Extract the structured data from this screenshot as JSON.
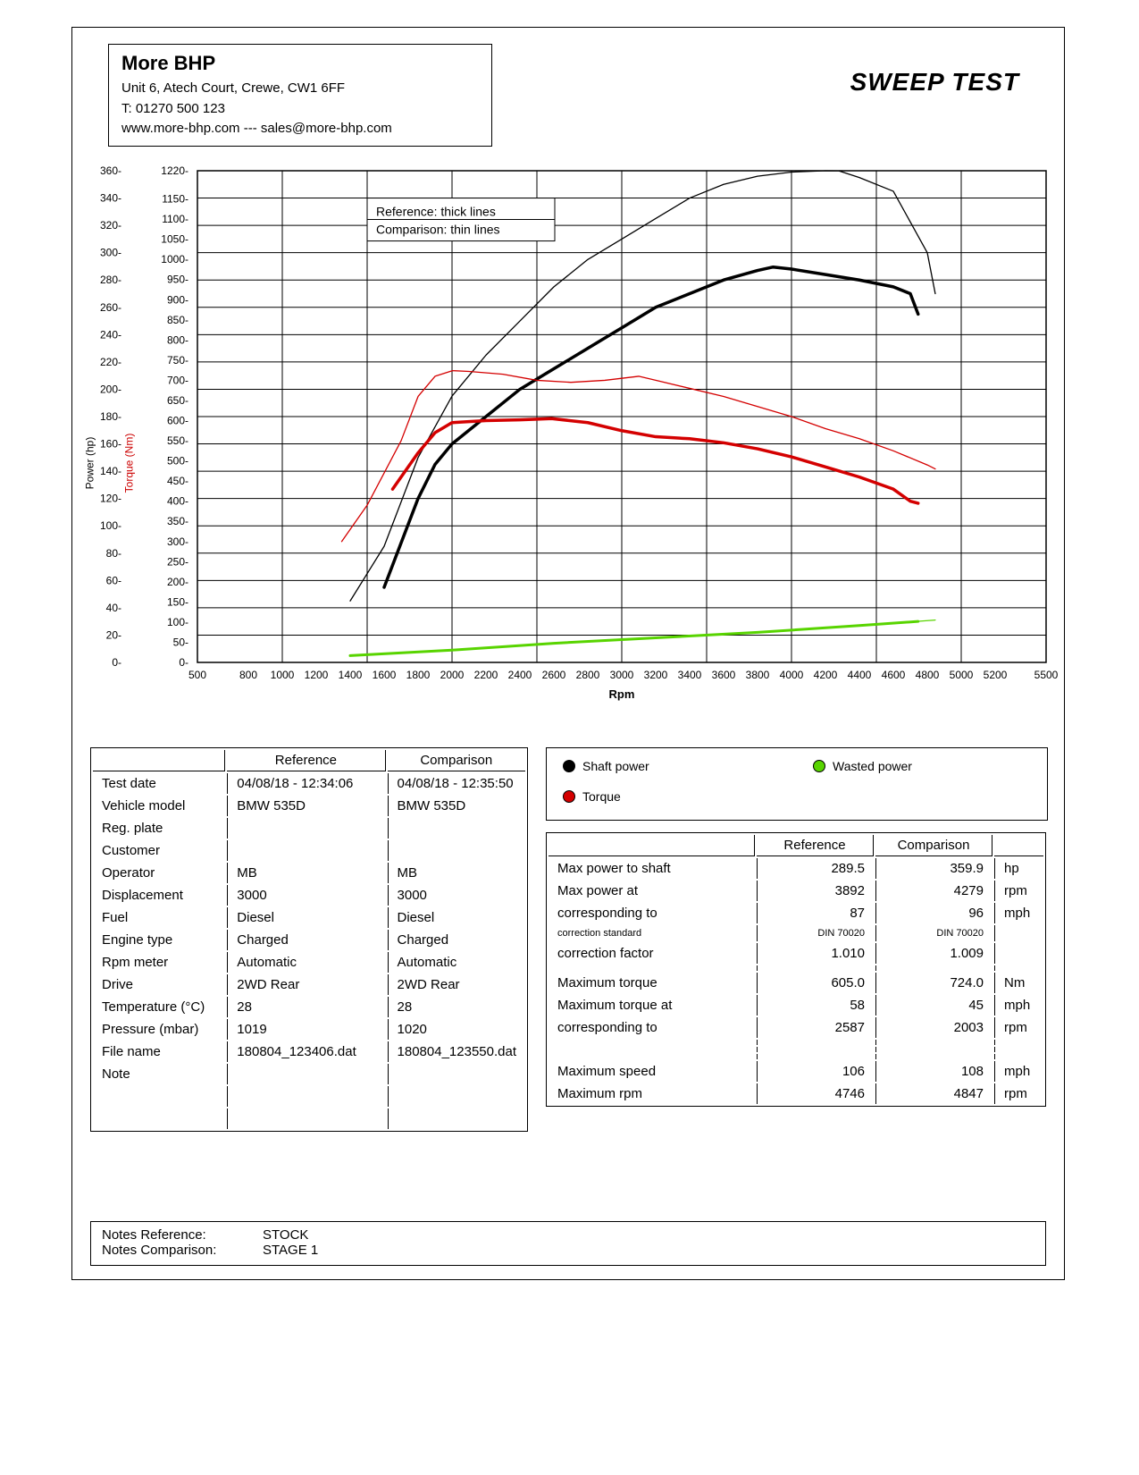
{
  "header": {
    "company": "More BHP",
    "address": "Unit 6, Atech Court, Crewe, CW1 6FF",
    "phone": "T: 01270 500 123",
    "web": "www.more-bhp.com --- sales@more-bhp.com"
  },
  "page_title": "SWEEP TEST",
  "chart": {
    "x_label": "Rpm",
    "y1_label": "Power (hp)",
    "y2_label": "Torque (Nm)",
    "xlim": [
      500,
      5500
    ],
    "xticks": [
      500,
      800,
      1000,
      1200,
      1400,
      1600,
      1800,
      2000,
      2200,
      2400,
      2600,
      2800,
      3000,
      3200,
      3400,
      3600,
      3800,
      4000,
      4200,
      4400,
      4600,
      4800,
      5000,
      5200,
      5500
    ],
    "y1_lim": [
      0,
      360
    ],
    "y1_ticks": [
      0,
      20,
      40,
      60,
      80,
      100,
      120,
      140,
      160,
      180,
      200,
      220,
      240,
      260,
      280,
      300,
      320,
      340,
      360
    ],
    "y2_lim": [
      0,
      1220
    ],
    "y2_ticks": [
      0,
      50,
      100,
      150,
      200,
      250,
      300,
      350,
      400,
      450,
      500,
      550,
      600,
      650,
      700,
      750,
      800,
      850,
      900,
      950,
      1000,
      1050,
      1100,
      1150,
      1220
    ],
    "grid_color": "#000000",
    "background_color": "#ffffff",
    "legend_box": {
      "line1": "Reference: thick lines",
      "line2": "Comparison: thin lines"
    },
    "series": {
      "power_ref": {
        "color": "#000000",
        "width": 3.5,
        "axis": "y1",
        "data": [
          [
            1600,
            55
          ],
          [
            1800,
            120
          ],
          [
            1900,
            145
          ],
          [
            2000,
            160
          ],
          [
            2200,
            180
          ],
          [
            2400,
            200
          ],
          [
            2600,
            215
          ],
          [
            2800,
            230
          ],
          [
            3000,
            245
          ],
          [
            3200,
            260
          ],
          [
            3400,
            270
          ],
          [
            3600,
            280
          ],
          [
            3800,
            287
          ],
          [
            3892,
            289.5
          ],
          [
            4000,
            288
          ],
          [
            4200,
            284
          ],
          [
            4400,
            280
          ],
          [
            4600,
            275
          ],
          [
            4700,
            270
          ],
          [
            4746,
            255
          ]
        ]
      },
      "power_comp": {
        "color": "#000000",
        "width": 1.3,
        "axis": "y1",
        "data": [
          [
            1400,
            45
          ],
          [
            1600,
            85
          ],
          [
            1800,
            150
          ],
          [
            2000,
            195
          ],
          [
            2200,
            225
          ],
          [
            2400,
            250
          ],
          [
            2600,
            275
          ],
          [
            2800,
            295
          ],
          [
            3000,
            310
          ],
          [
            3200,
            325
          ],
          [
            3400,
            340
          ],
          [
            3600,
            350
          ],
          [
            3800,
            356
          ],
          [
            4000,
            359
          ],
          [
            4200,
            360
          ],
          [
            4279,
            359.9
          ],
          [
            4400,
            355
          ],
          [
            4600,
            345
          ],
          [
            4800,
            300
          ],
          [
            4847,
            270
          ]
        ]
      },
      "torque_ref": {
        "color": "#d40000",
        "width": 3.5,
        "axis": "y2",
        "data": [
          [
            1650,
            430
          ],
          [
            1800,
            520
          ],
          [
            1900,
            570
          ],
          [
            2000,
            595
          ],
          [
            2200,
            600
          ],
          [
            2400,
            602
          ],
          [
            2587,
            605
          ],
          [
            2800,
            595
          ],
          [
            3000,
            575
          ],
          [
            3200,
            560
          ],
          [
            3400,
            555
          ],
          [
            3600,
            545
          ],
          [
            3800,
            530
          ],
          [
            4000,
            510
          ],
          [
            4200,
            485
          ],
          [
            4400,
            460
          ],
          [
            4600,
            430
          ],
          [
            4700,
            400
          ],
          [
            4746,
            395
          ]
        ]
      },
      "torque_comp": {
        "color": "#d40000",
        "width": 1.3,
        "axis": "y2",
        "data": [
          [
            1350,
            300
          ],
          [
            1500,
            390
          ],
          [
            1700,
            550
          ],
          [
            1800,
            660
          ],
          [
            1900,
            710
          ],
          [
            2003,
            724
          ],
          [
            2100,
            722
          ],
          [
            2300,
            715
          ],
          [
            2500,
            700
          ],
          [
            2700,
            695
          ],
          [
            2900,
            700
          ],
          [
            3100,
            710
          ],
          [
            3200,
            700
          ],
          [
            3400,
            680
          ],
          [
            3600,
            660
          ],
          [
            3800,
            635
          ],
          [
            4000,
            610
          ],
          [
            4200,
            580
          ],
          [
            4400,
            555
          ],
          [
            4600,
            525
          ],
          [
            4800,
            490
          ],
          [
            4847,
            480
          ]
        ]
      },
      "wasted_ref": {
        "color": "#58d400",
        "width": 3,
        "axis": "y1",
        "data": [
          [
            1400,
            5
          ],
          [
            2000,
            9
          ],
          [
            2600,
            14
          ],
          [
            3200,
            18
          ],
          [
            3800,
            22
          ],
          [
            4400,
            27
          ],
          [
            4746,
            30
          ]
        ]
      },
      "wasted_comp": {
        "color": "#58d400",
        "width": 1.3,
        "axis": "y1",
        "data": [
          [
            1400,
            5
          ],
          [
            2000,
            9
          ],
          [
            2600,
            14
          ],
          [
            3200,
            18
          ],
          [
            3800,
            22
          ],
          [
            4400,
            27
          ],
          [
            4847,
            31
          ]
        ]
      }
    }
  },
  "legend_panel": {
    "shaft": {
      "label": "Shaft power",
      "color": "#000000"
    },
    "torque": {
      "label": "Torque",
      "color": "#d40000"
    },
    "wasted": {
      "label": "Wasted power",
      "color": "#58d400"
    }
  },
  "info_table": {
    "h_ref": "Reference",
    "h_comp": "Comparison",
    "rows1": [
      {
        "k": "Test date",
        "r": "04/08/18 - 12:34:06",
        "c": "04/08/18 - 12:35:50"
      },
      {
        "k": "Vehicle model",
        "r": "BMW 535D",
        "c": "BMW 535D"
      },
      {
        "k": "Reg. plate",
        "r": "",
        "c": ""
      },
      {
        "k": "Customer",
        "r": "",
        "c": ""
      },
      {
        "k": "Operator",
        "r": "MB",
        "c": "MB"
      },
      {
        "k": "Displacement",
        "r": "3000",
        "c": "3000"
      },
      {
        "k": "Fuel",
        "r": "Diesel",
        "c": "Diesel"
      },
      {
        "k": "Engine type",
        "r": "Charged",
        "c": "Charged"
      },
      {
        "k": "Rpm meter",
        "r": "Automatic",
        "c": "Automatic"
      },
      {
        "k": "Drive",
        "r": "2WD Rear",
        "c": "2WD Rear"
      }
    ],
    "rows2": [
      {
        "k": "Temperature (°C)",
        "r": "28",
        "c": "28"
      },
      {
        "k": "Pressure (mbar)",
        "r": "1019",
        "c": "1020"
      }
    ],
    "rows3": [
      {
        "k": "File name",
        "r": "180804_123406.dat",
        "c": "180804_123550.dat"
      },
      {
        "k": "Note",
        "r": "",
        "c": ""
      }
    ]
  },
  "results_table": {
    "h_ref": "Reference",
    "h_comp": "Comparison",
    "rows": [
      {
        "k": "Max power to shaft",
        "r": "289.5",
        "c": "359.9",
        "u": "hp"
      },
      {
        "k": "Max power at",
        "r": "3892",
        "c": "4279",
        "u": "rpm"
      },
      {
        "k": "corresponding to",
        "r": "87",
        "c": "96",
        "u": "mph"
      },
      {
        "k": "correction standard",
        "r": "DIN 70020",
        "c": "DIN 70020",
        "u": "",
        "tiny": true
      },
      {
        "k": "correction factor",
        "r": "1.010",
        "c": "1.009",
        "u": ""
      },
      {
        "k": "",
        "r": "",
        "c": "",
        "u": ""
      },
      {
        "k": "Maximum torque",
        "r": "605.0",
        "c": "724.0",
        "u": "Nm"
      },
      {
        "k": "Maximum torque at",
        "r": "58",
        "c": "45",
        "u": "mph"
      },
      {
        "k": "corresponding to",
        "r": "2587",
        "c": "2003",
        "u": "rpm"
      },
      {
        "k": "",
        "r": "",
        "c": "",
        "u": ""
      },
      {
        "k": "",
        "r": "",
        "c": "",
        "u": ""
      },
      {
        "k": "",
        "r": "",
        "c": "",
        "u": ""
      },
      {
        "k": "Maximum speed",
        "r": "106",
        "c": "108",
        "u": "mph"
      },
      {
        "k": "Maximum rpm",
        "r": "4746",
        "c": "4847",
        "u": "rpm"
      }
    ]
  },
  "notes": {
    "l1k": "Notes Reference:",
    "l1v": "STOCK",
    "l2k": "Notes Comparison:",
    "l2v": "STAGE 1"
  }
}
